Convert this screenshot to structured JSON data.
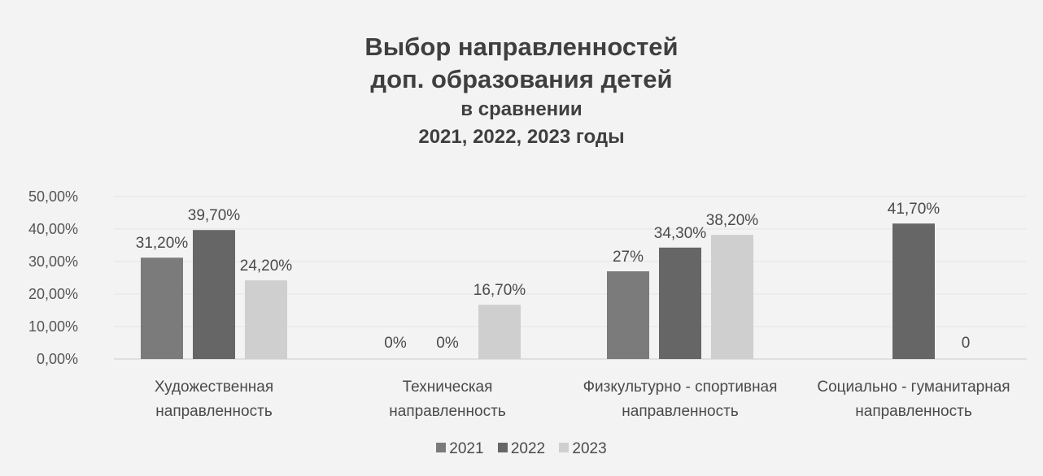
{
  "chart_data": {
    "type": "bar",
    "title": "Выбор направленностей",
    "title_line2": "доп. образования детей",
    "subtitle": "в сравнении",
    "subtitle_line2": "2021, 2022, 2023 годы",
    "categories": [
      [
        "Художественная",
        "направленность"
      ],
      [
        "Техническая",
        "направленность"
      ],
      [
        "Физкультурно - спортивная",
        "направленность"
      ],
      [
        "Социально - гуманитарная",
        "направленность"
      ]
    ],
    "series": [
      {
        "name": "2021",
        "color": "#7b7b7b",
        "values": [
          31.2,
          0,
          27,
          null
        ],
        "labels": [
          "31,20%",
          "0%",
          "27%",
          ""
        ]
      },
      {
        "name": "2022",
        "color": "#666666",
        "values": [
          39.7,
          0,
          34.3,
          41.7
        ],
        "labels": [
          "39,70%",
          "0%",
          "34,30%",
          "41,70%"
        ]
      },
      {
        "name": "2023",
        "color": "#cfcfcf",
        "values": [
          24.2,
          16.7,
          38.2,
          0
        ],
        "labels": [
          "24,20%",
          "16,70%",
          "38,20%",
          "0"
        ]
      }
    ],
    "y_ticks": [
      "0,00%",
      "10,00%",
      "20,00%",
      "30,00%",
      "40,00%",
      "50,00%"
    ],
    "ylim": [
      0,
      50
    ],
    "grid": true,
    "legend_position": "bottom"
  }
}
